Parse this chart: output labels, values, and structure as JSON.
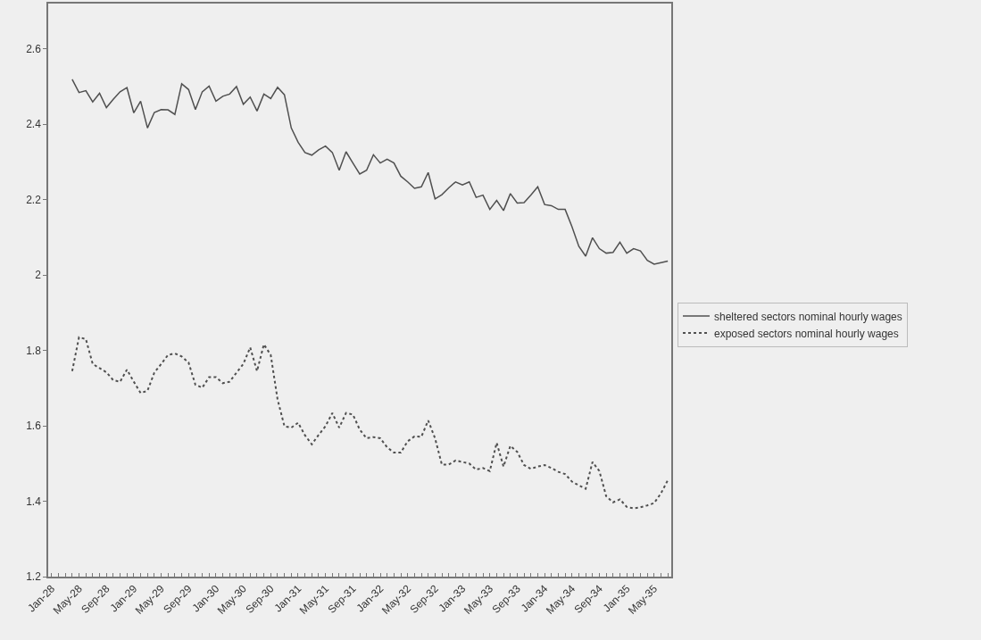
{
  "chart_data": {
    "type": "line",
    "categories": [
      "Jan-28",
      null,
      null,
      null,
      "May-28",
      null,
      null,
      null,
      "Sep-28",
      null,
      null,
      null,
      "Jan-29",
      null,
      null,
      null,
      "May-29",
      null,
      null,
      null,
      "Sep-29",
      null,
      null,
      null,
      "Jan-30",
      null,
      null,
      null,
      "May-30",
      null,
      null,
      null,
      "Sep-30",
      null,
      null,
      null,
      "Jan-31",
      null,
      null,
      null,
      "May-31",
      null,
      null,
      null,
      "Sep-31",
      null,
      null,
      null,
      "Jan-32",
      null,
      null,
      null,
      "May-32",
      null,
      null,
      null,
      "Sep-32",
      null,
      null,
      null,
      "Jan-33",
      null,
      null,
      null,
      "May-33",
      null,
      null,
      null,
      "Sep-33",
      null,
      null,
      null,
      "Jan-34",
      null,
      null,
      null,
      "May-34",
      null,
      null,
      null,
      "Sep-34",
      null,
      null,
      null,
      "Jan-35",
      null,
      null,
      null,
      "May-35",
      null,
      null
    ],
    "series": [
      {
        "name": "sheltered sectors nominal hourly wages",
        "color": "#505050",
        "line_style": "solid",
        "values": [
          null,
          null,
          null,
          2.519,
          2.484,
          2.489,
          2.459,
          2.482,
          2.444,
          2.466,
          2.486,
          2.497,
          2.43,
          2.461,
          2.39,
          2.431,
          2.439,
          2.438,
          2.426,
          2.507,
          2.492,
          2.439,
          2.486,
          2.501,
          2.461,
          2.474,
          2.48,
          2.5,
          2.453,
          2.472,
          2.435,
          2.48,
          2.468,
          2.498,
          2.478,
          2.39,
          2.352,
          2.325,
          2.318,
          2.332,
          2.342,
          2.325,
          2.278,
          2.327,
          2.297,
          2.268,
          2.278,
          2.319,
          2.297,
          2.307,
          2.297,
          2.262,
          2.247,
          2.23,
          2.234,
          2.272,
          2.202,
          2.213,
          2.231,
          2.247,
          2.239,
          2.247,
          2.206,
          2.212,
          2.174,
          2.198,
          2.171,
          2.216,
          2.191,
          2.192,
          2.212,
          2.234,
          2.187,
          2.184,
          2.174,
          2.174,
          2.128,
          2.076,
          2.05,
          2.099,
          2.07,
          2.058,
          2.06,
          2.087,
          2.058,
          2.07,
          2.064,
          2.039,
          2.029,
          2.033,
          2.037
        ]
      },
      {
        "name": "exposed sectors nominal hourly wages",
        "color": "#505050",
        "line_style": "dotted",
        "values": [
          null,
          null,
          null,
          1.745,
          1.835,
          1.83,
          1.764,
          1.753,
          1.742,
          1.721,
          1.717,
          1.749,
          1.717,
          1.687,
          1.693,
          1.741,
          1.764,
          1.788,
          1.792,
          1.784,
          1.768,
          1.709,
          1.701,
          1.729,
          1.729,
          1.713,
          1.717,
          1.741,
          1.764,
          1.808,
          1.745,
          1.816,
          1.788,
          1.67,
          1.599,
          1.595,
          1.608,
          1.575,
          1.551,
          1.576,
          1.599,
          1.634,
          1.595,
          1.634,
          1.63,
          1.59,
          1.567,
          1.57,
          1.567,
          1.543,
          1.529,
          1.529,
          1.559,
          1.572,
          1.571,
          1.614,
          1.567,
          1.497,
          1.497,
          1.508,
          1.504,
          1.5,
          1.484,
          1.488,
          1.48,
          1.555,
          1.492,
          1.547,
          1.531,
          1.496,
          1.486,
          1.492,
          1.496,
          1.488,
          1.478,
          1.472,
          1.452,
          1.442,
          1.433,
          1.504,
          1.48,
          1.413,
          1.397,
          1.405,
          1.385,
          1.381,
          1.384,
          1.389,
          1.395,
          1.421,
          1.456
        ]
      }
    ],
    "ylim": [
      1.2,
      2.72
    ],
    "yticks": [
      1.2,
      1.4,
      1.6,
      1.8,
      2,
      2.2,
      2.4,
      2.6
    ],
    "grid": false,
    "legend": "right",
    "marker": "none"
  }
}
